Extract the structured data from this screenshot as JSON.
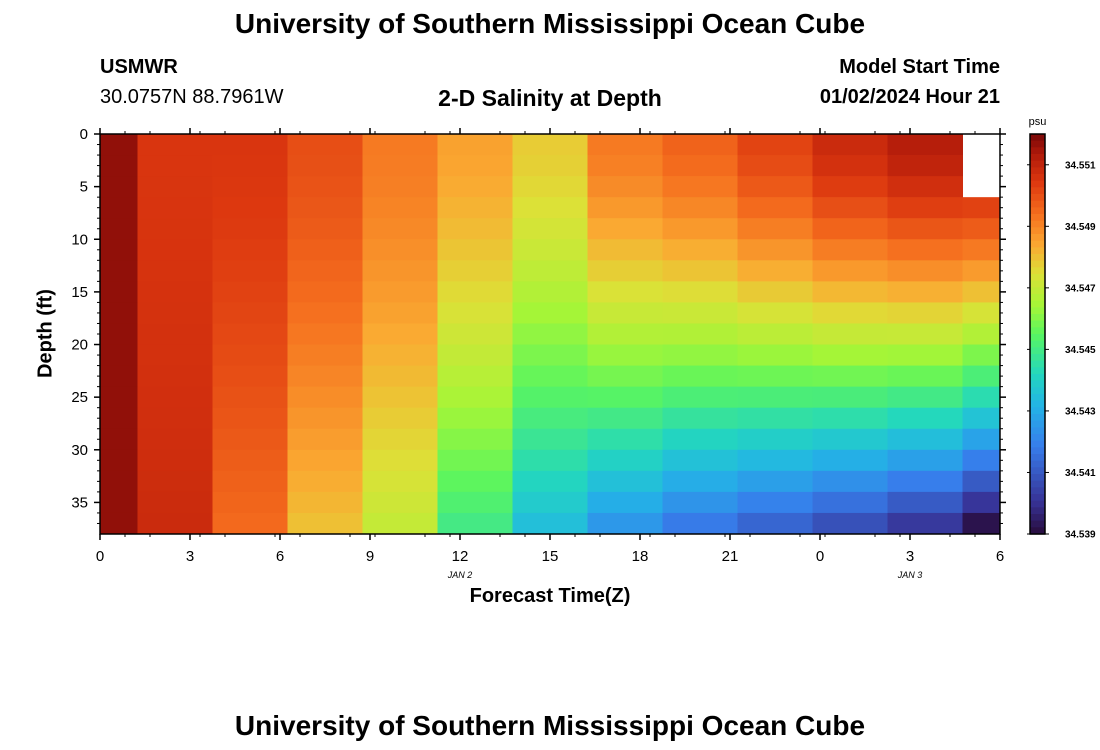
{
  "title": "University of Southern Mississippi Ocean Cube",
  "footer_title": "University of Southern Mississippi Ocean Cube",
  "station": {
    "name": "USMWR",
    "coords": "30.0757N  88.7961W"
  },
  "model_start": {
    "label": "Model Start Time",
    "value": "01/02/2024 Hour 21"
  },
  "subtitle": "2-D Salinity at Depth",
  "chart_data": {
    "type": "heatmap",
    "title": "2-D Salinity at Depth",
    "xlabel": "Forecast Time(Z)",
    "ylabel": "Depth (ft)",
    "x_ticks": [
      "0",
      "3",
      "6",
      "9",
      "12",
      "15",
      "18",
      "21",
      "0",
      "3",
      "6"
    ],
    "x_date_labels": [
      {
        "label": "JAN 2",
        "at_tick": 4
      },
      {
        "label": "JAN 3",
        "at_tick": 9
      }
    ],
    "x_range": [
      0,
      36
    ],
    "y_ticks": [
      "0",
      "5",
      "10",
      "15",
      "20",
      "25",
      "30",
      "35"
    ],
    "y_tick_values": [
      0,
      5,
      10,
      15,
      20,
      25,
      30,
      35
    ],
    "y_range": [
      0,
      38
    ],
    "column_times": [
      0,
      3,
      6,
      9,
      12,
      15,
      18,
      21,
      24,
      27,
      30,
      33,
      36
    ],
    "depth_bins": [
      0,
      2,
      4,
      6,
      8,
      10,
      12,
      14,
      16,
      18,
      20,
      22,
      24,
      26,
      28,
      30,
      32,
      34,
      36,
      38
    ],
    "missing_cells": [
      {
        "column": 12,
        "depth_from": 0,
        "depth_to": 6
      }
    ],
    "colorbar": {
      "unit": "psu",
      "range": [
        34.539,
        34.552
      ],
      "tick_labels": [
        "34.551",
        "34.549",
        "34.547",
        "34.545",
        "34.543",
        "34.541",
        "34.539"
      ],
      "tick_values": [
        34.551,
        34.549,
        34.547,
        34.545,
        34.543,
        34.541,
        34.539
      ]
    },
    "columns": [
      {
        "time": 0,
        "start": 34.5517,
        "end": 34.5517,
        "top": 34.5517
      },
      {
        "time": 3,
        "start": 34.5505,
        "end": 34.5508,
        "top": 34.5505
      },
      {
        "time": 6,
        "start": 34.5505,
        "end": 34.5495,
        "top": 34.5505
      },
      {
        "time": 9,
        "start": 34.55,
        "end": 34.548,
        "top": 34.55
      },
      {
        "time": 12,
        "start": 34.5492,
        "end": 34.547,
        "top": 34.5492
      },
      {
        "time": 15,
        "start": 34.5485,
        "end": 34.545,
        "top": 34.5485
      },
      {
        "time": 18,
        "start": 34.5478,
        "end": 34.5435,
        "top": 34.5478
      },
      {
        "time": 21,
        "start": 34.5492,
        "end": 34.5425,
        "top": 34.5492
      },
      {
        "time": 24,
        "start": 34.5496,
        "end": 34.5418,
        "top": 34.5496
      },
      {
        "time": 27,
        "start": 34.5502,
        "end": 34.5413,
        "top": 34.5502
      },
      {
        "time": 30,
        "start": 34.5508,
        "end": 34.5408,
        "top": 34.5508
      },
      {
        "time": 33,
        "start": 34.5512,
        "end": 34.5402,
        "top": 34.5512
      },
      {
        "time": 36,
        "start": 34.5512,
        "end": 34.5392,
        "top": null
      }
    ]
  }
}
